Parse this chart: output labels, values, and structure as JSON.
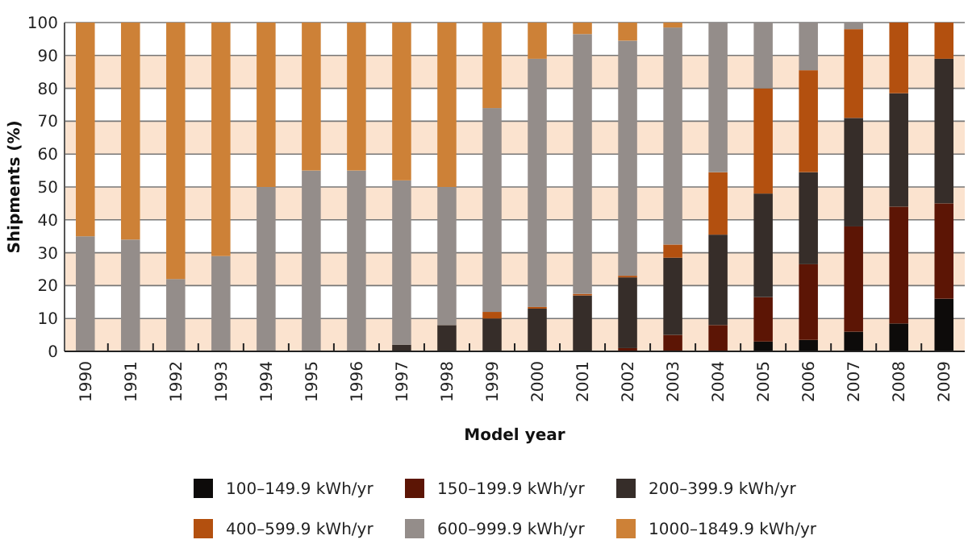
{
  "chart_data": {
    "type": "bar",
    "stacked": true,
    "xlabel": "Model year",
    "ylabel": "Shipments (%)",
    "categories": [
      "1990",
      "1991",
      "1992",
      "1993",
      "1994",
      "1995",
      "1996",
      "1997",
      "1998",
      "1999",
      "2000",
      "2001",
      "2002",
      "2003",
      "2004",
      "2005",
      "2006",
      "2007",
      "2008",
      "2009"
    ],
    "series": [
      {
        "name": "100–149.9 kWh/yr",
        "color": "#0d0b0a",
        "values": [
          0,
          0,
          0,
          0,
          0,
          0,
          0,
          0,
          0,
          0,
          0,
          0,
          0,
          0,
          0,
          3,
          3.5,
          6,
          8.5,
          16
        ]
      },
      {
        "name": "150–199.9 kWh/yr",
        "color": "#5c1505",
        "values": [
          0,
          0,
          0,
          0,
          0,
          0,
          0,
          0,
          0,
          0,
          0,
          0,
          1,
          5,
          8,
          13.5,
          23,
          32,
          35.5,
          29
        ]
      },
      {
        "name": "200–399.9 kWh/yr",
        "color": "#362d29",
        "values": [
          0,
          0,
          0,
          0,
          0,
          0,
          0,
          2,
          8,
          10,
          13,
          17,
          21.5,
          23.5,
          27.5,
          31.5,
          28,
          33,
          34.5,
          44
        ]
      },
      {
        "name": "400–599.9 kWh/yr",
        "color": "#b3500f",
        "values": [
          0,
          0,
          0,
          0,
          0,
          0,
          0,
          0,
          0,
          2,
          0.5,
          0.5,
          0.5,
          4,
          19,
          32,
          31,
          27,
          21.5,
          11
        ]
      },
      {
        "name": "600–999.9 kWh/yr",
        "color": "#948d8a",
        "values": [
          35,
          34,
          22,
          29,
          50,
          55,
          55,
          50,
          42,
          62,
          75.5,
          79,
          71.5,
          66,
          45.5,
          20,
          14.5,
          2,
          0,
          0
        ]
      },
      {
        "name": "1000–1849.9 kWh/yr",
        "color": "#cd8137",
        "values": [
          65,
          66,
          78,
          71,
          50,
          45,
          45,
          48,
          50,
          26,
          11,
          3.5,
          5.5,
          1.5,
          0,
          0,
          0,
          0,
          0,
          0
        ]
      }
    ],
    "ylim": [
      0,
      100
    ],
    "yticks": [
      0,
      10,
      20,
      30,
      40,
      50,
      60,
      70,
      80,
      90,
      100
    ],
    "grid": "y",
    "legend": "bottom",
    "bands": [
      {
        "axis": "y",
        "from": 0,
        "to": 10,
        "color": "#fbe3cf"
      },
      {
        "axis": "y",
        "from": 20,
        "to": 30,
        "color": "#fbe3cf"
      },
      {
        "axis": "y",
        "from": 40,
        "to": 50,
        "color": "#fbe3cf"
      },
      {
        "axis": "y",
        "from": 60,
        "to": 70,
        "color": "#fbe3cf"
      },
      {
        "axis": "y",
        "from": 80,
        "to": 90,
        "color": "#fbe3cf"
      }
    ]
  }
}
